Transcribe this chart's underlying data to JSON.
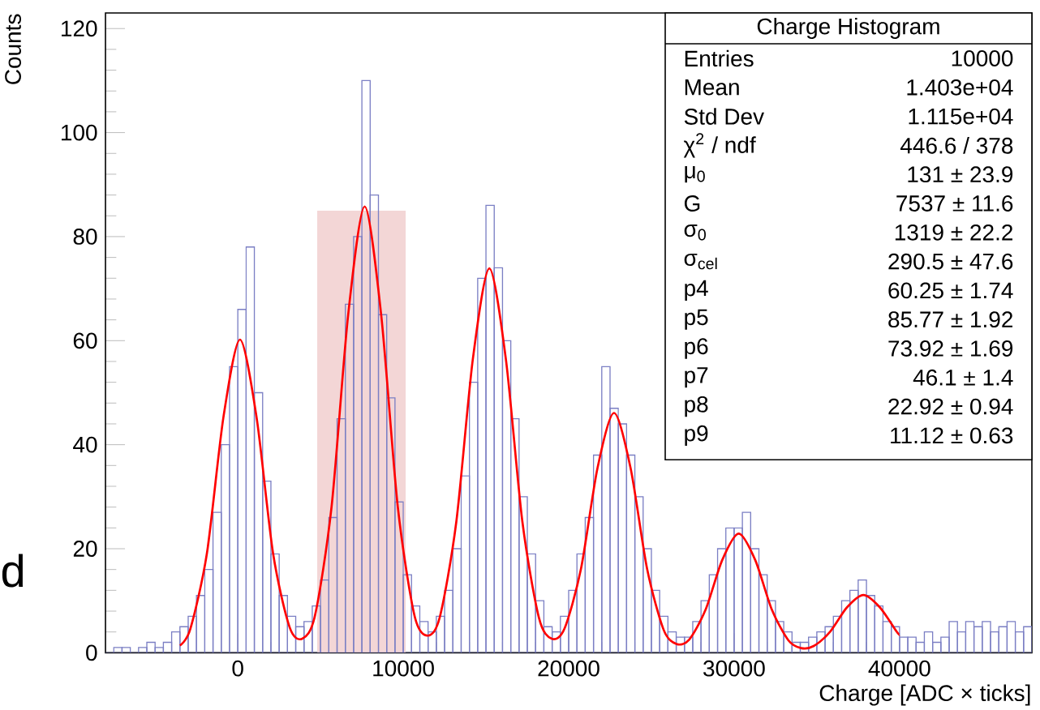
{
  "chart_data": {
    "type": "histogram",
    "title": "Charge Histogram",
    "xlabel": "Charge [ADC × ticks]",
    "ylabel": "Counts",
    "bins": [
      -8000,
      -7500,
      -7000,
      -6500,
      -6000,
      -5500,
      -5000,
      -4500,
      -4000,
      -3500,
      -3000,
      -2500,
      -2000,
      -1500,
      -1000,
      -500,
      0,
      500,
      1000,
      1500,
      2000,
      2500,
      3000,
      3500,
      4000,
      4500,
      5000,
      5500,
      6000,
      6500,
      7000,
      7500,
      8000,
      8500,
      9000,
      9500,
      10000,
      10500,
      11000,
      11500,
      12000,
      12500,
      13000,
      13500,
      14000,
      14500,
      15000,
      15500,
      16000,
      16500,
      17000,
      17500,
      18000,
      18500,
      19000,
      19500,
      20000,
      20500,
      21000,
      21500,
      22000,
      22500,
      23000,
      23500,
      24000,
      24500,
      25000,
      25500,
      26000,
      26500,
      27000,
      27500,
      28000,
      28500,
      29000,
      29500,
      30000,
      30500,
      31000,
      31500,
      32000,
      32500,
      33000,
      33500,
      34000,
      34500,
      35000,
      35500,
      36000,
      36500,
      37000,
      37500,
      38000,
      38500,
      39000,
      39500,
      40000,
      40500,
      41000,
      41500,
      42000,
      42500,
      43000,
      43500,
      44000,
      44500,
      45000,
      45500,
      46000,
      46500,
      47000,
      47500,
      48000
    ],
    "values": [
      0,
      1,
      1,
      0,
      1,
      2,
      1,
      2,
      4,
      5,
      7,
      11,
      16,
      27,
      40,
      55,
      66,
      78,
      50,
      33,
      19,
      11,
      7,
      5,
      6,
      9,
      14,
      26,
      45,
      67,
      80,
      110,
      88,
      65,
      49,
      29,
      15,
      9,
      6,
      4,
      7,
      12,
      20,
      34,
      52,
      72,
      86,
      74,
      60,
      45,
      30,
      19,
      10,
      5,
      4,
      7,
      12,
      19,
      26,
      38,
      55,
      47,
      44,
      38,
      30,
      20,
      12,
      7,
      4,
      3,
      3,
      6,
      10,
      15,
      20,
      24,
      24,
      27,
      20,
      15,
      10,
      6,
      4,
      2,
      2,
      3,
      4,
      5,
      7,
      10,
      12,
      14,
      11,
      9,
      6,
      5,
      3,
      3,
      2,
      4,
      2,
      3,
      6,
      4,
      6,
      5,
      6,
      4,
      5,
      6,
      4,
      5
    ],
    "color": "#7b7fc4",
    "series": [
      {
        "type": "area",
        "color": "#f3d6d6",
        "x": [
          4800,
          10150
        ],
        "values": [
          85,
          85
        ]
      },
      {
        "type": "line",
        "color": "#ff0000",
        "x": [
          -3500,
          -2869,
          -1869,
          -869,
          131,
          1131,
          2131,
          3131,
          3900,
          4668,
          5668,
          6668,
          7668,
          8668,
          9668,
          10668,
          11437,
          12205,
          13205,
          14205,
          15205,
          16205,
          17205,
          18205,
          18974,
          19742,
          20742,
          21742,
          22742,
          23742,
          24742,
          25742,
          26510,
          27279,
          28279,
          29279,
          30279,
          31279,
          32279,
          33279,
          34047,
          34816,
          35816,
          36816,
          37816,
          38816,
          39816,
          40000
        ],
        "values": [
          1.4,
          4.6,
          19.1,
          45.3,
          60.2,
          45.3,
          19.1,
          4.9,
          2.7,
          7.2,
          28.1,
          64.9,
          85.8,
          64.9,
          28.1,
          7.3,
          3.3,
          6.8,
          25.1,
          56.4,
          73.9,
          56.4,
          25.1,
          6.7,
          2.7,
          4.6,
          16.1,
          35.5,
          46.1,
          35.5,
          16.1,
          4.4,
          1.7,
          2.5,
          8.3,
          17.8,
          22.9,
          17.8,
          8.3,
          2.4,
          0.9,
          1.3,
          4.1,
          8.7,
          11.1,
          8.7,
          4.1,
          3.4
        ]
      }
    ],
    "xlim": [
      -8000,
      48000
    ],
    "ylim": [
      0,
      123
    ],
    "xticks": [
      0,
      10000,
      20000,
      30000,
      40000
    ],
    "yticks": [
      0,
      20,
      40,
      60,
      80,
      100,
      120
    ],
    "annotations": [
      "d",
      "Entries",
      "10000",
      "Mean",
      "1.403e+04",
      "Std Dev",
      "1.115e+04",
      "χ$^{2}$ / ndf",
      "446.6 / 378",
      "μ$_{0}$",
      "131 ± 23.9",
      "G",
      "7537 ± 11.6",
      "σ$_{0}$",
      "1319 ± 22.2",
      "σ$_{cel}$",
      "290.5 ± 47.6",
      "p4",
      "60.25 ± 1.74",
      "p5",
      "85.77 ± 1.92",
      "p6",
      "73.92 ± 1.69",
      "p7",
      "46.1 ± 1.4",
      "p8",
      "22.92 ± 0.94",
      "p9",
      "11.12 ± 0.63"
    ]
  }
}
